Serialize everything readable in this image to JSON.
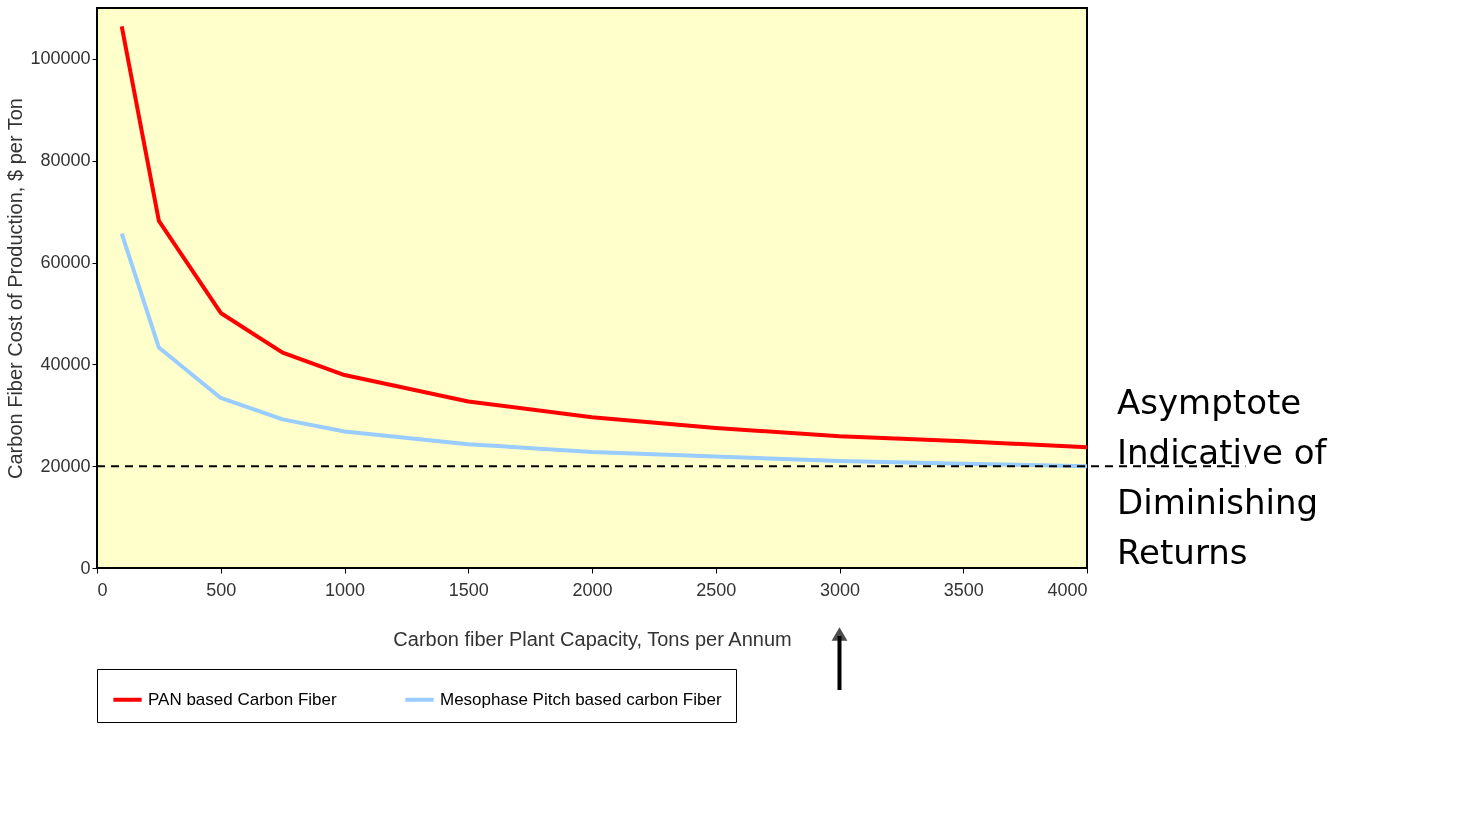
{
  "chart_data": {
    "type": "line",
    "xlabel": "Carbon fiber Plant Capacity, Tons per Annum",
    "ylabel": "Carbon Fiber Cost of Production, $ per Ton",
    "x": [
      100,
      250,
      500,
      750,
      1000,
      1500,
      2000,
      2500,
      3000,
      3500,
      4000
    ],
    "series": [
      {
        "name": "PAN based Carbon Fiber",
        "color": "#ff0000",
        "values": [
          106400,
          68200,
          50100,
          42300,
          37900,
          32700,
          29600,
          27500,
          25900,
          24900,
          23700
        ]
      },
      {
        "name": "Mesophase Pitch based carbon Fiber",
        "color": "#99ccff",
        "values": [
          65700,
          43300,
          33400,
          29200,
          26800,
          24300,
          22800,
          21900,
          21000,
          20500,
          20000
        ]
      }
    ],
    "xlim": [
      0,
      4000
    ],
    "xticks": [
      0,
      500,
      1000,
      1500,
      2000,
      2500,
      3000,
      3500,
      4000
    ],
    "ylim": [
      0,
      110000
    ],
    "yticks": [
      0,
      20000,
      40000,
      60000,
      80000,
      100000
    ],
    "ref_lines": [
      {
        "axis": "y",
        "value": 20000,
        "label": "Asymptote Indicative of Diminishing Returns",
        "color": "#000000",
        "line_style": "dashed"
      }
    ],
    "grid": false,
    "legend": "bottom",
    "marker": "none",
    "line_style": "solid"
  }
}
